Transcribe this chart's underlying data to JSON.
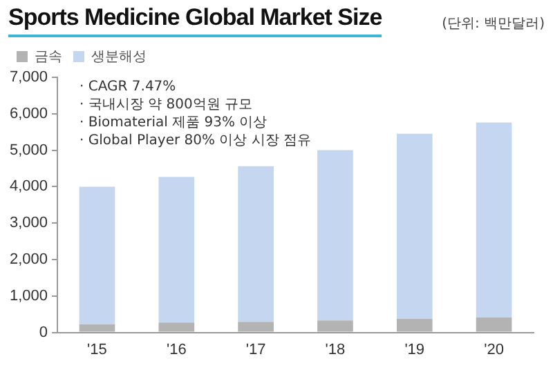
{
  "chart_data": {
    "type": "bar",
    "title": "Sports Medicine Global  Market Size",
    "ylabel": "(단위: 백만달러)",
    "categories": [
      "'15",
      "'16",
      "'17",
      "'18",
      "'19",
      "'20"
    ],
    "series": [
      {
        "name": "금속",
        "color": "#b3b3b3",
        "values": [
          220,
          270,
          290,
          330,
          370,
          410
        ]
      },
      {
        "name": "생분해성",
        "color": "#c5d7f0",
        "values": [
          3780,
          4000,
          4270,
          4670,
          5080,
          5350
        ]
      }
    ],
    "stacked": true,
    "ylim": [
      0,
      7000
    ],
    "yticks": [
      {
        "value": 0,
        "label": "0"
      },
      {
        "value": 1000,
        "label": "1,000"
      },
      {
        "value": 2000,
        "label": "2,000"
      },
      {
        "value": 3000,
        "label": "3,000"
      },
      {
        "value": 4000,
        "label": "4,000"
      },
      {
        "value": 5000,
        "label": "5,000"
      },
      {
        "value": 6000,
        "label": "6,000"
      },
      {
        "value": 7000,
        "label": "7,000"
      }
    ],
    "grid": false,
    "legend": "top left",
    "annotations": [
      "· CAGR 7.47%",
      "· 국내시장 약 800억원 규모",
      "· Biomaterial 제품 93% 이상",
      "· Global Player 80% 이상 시장 점유"
    ]
  }
}
